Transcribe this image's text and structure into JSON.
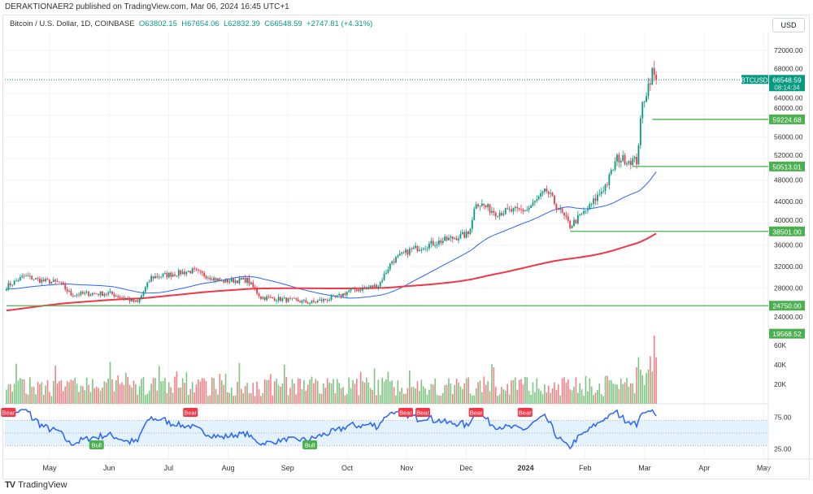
{
  "header": {
    "published": "DERAKTIONAER2 published on TradingView.com, Mar 06, 2024 16:45 UTC+1"
  },
  "legend": {
    "symbol": "Bitcoin / U.S. Dollar, 1D, COINBASE",
    "open": "O63802.15",
    "high": "H67654.06",
    "low": "L62832.39",
    "close": "C66548.59",
    "change": "+2747.81 (+4.31%)"
  },
  "currency_button": "USD",
  "footer": {
    "brand": "TradingView"
  },
  "colors": {
    "up": "#089981",
    "down": "#f23645",
    "ma_fast": "#2962ff",
    "ma_slow": "#f23645",
    "level": "#4caf50",
    "rsi": "#2962ff",
    "rsi_band": "#e3f2fd"
  },
  "chart_data": {
    "type": "candlestick",
    "symbol_label": "BTCUSD",
    "last_price": "66548.59",
    "countdown": "08:14:34",
    "price_axis": {
      "ticks": [
        "72000.00",
        "68000.00",
        "64000.00",
        "60000.00",
        "56000.00",
        "52000.00",
        "48000.00",
        "44000.00",
        "40000.00",
        "36000.00",
        "32000.00",
        "28000.00",
        "24000.00"
      ],
      "range": [
        20000,
        74000
      ]
    },
    "time_axis": {
      "ticks": [
        "May",
        "Jun",
        "Jul",
        "Aug",
        "Sep",
        "Oct",
        "Nov",
        "Dec",
        "2024",
        "Feb",
        "Mar",
        "Apr",
        "May"
      ],
      "range": [
        "2023-04-09",
        "2024-05-05"
      ]
    },
    "close_anchors": [
      [
        "2023-04-09",
        28300
      ],
      [
        "2023-04-18",
        30200
      ],
      [
        "2023-04-28",
        29300
      ],
      [
        "2023-05-06",
        29000
      ],
      [
        "2023-05-12",
        26800
      ],
      [
        "2023-05-22",
        27000
      ],
      [
        "2023-06-01",
        27000
      ],
      [
        "2023-06-15",
        25300
      ],
      [
        "2023-06-22",
        30000
      ],
      [
        "2023-07-01",
        30500
      ],
      [
        "2023-07-13",
        31200
      ],
      [
        "2023-07-28",
        29300
      ],
      [
        "2023-08-10",
        29500
      ],
      [
        "2023-08-17",
        26300
      ],
      [
        "2023-09-01",
        25800
      ],
      [
        "2023-09-11",
        25300
      ],
      [
        "2023-09-25",
        26300
      ],
      [
        "2023-10-01",
        27500
      ],
      [
        "2023-10-16",
        28500
      ],
      [
        "2023-10-23",
        33000
      ],
      [
        "2023-11-01",
        35000
      ],
      [
        "2023-11-15",
        36500
      ],
      [
        "2023-12-01",
        38000
      ],
      [
        "2023-12-05",
        44000
      ],
      [
        "2023-12-15",
        42000
      ],
      [
        "2023-12-31",
        42500
      ],
      [
        "2024-01-10",
        46000
      ],
      [
        "2024-01-22",
        39500
      ],
      [
        "2024-02-01",
        43000
      ],
      [
        "2024-02-10",
        47500
      ],
      [
        "2024-02-15",
        52000
      ],
      [
        "2024-02-25",
        51500
      ],
      [
        "2024-02-28",
        62000
      ],
      [
        "2024-03-04",
        68000
      ],
      [
        "2024-03-06",
        66548.59
      ]
    ],
    "levels": [
      {
        "value": 59224.68,
        "label": "59224.68",
        "from": "2024-03-04"
      },
      {
        "value": 50513.01,
        "label": "50513.01",
        "from": "2024-02-23"
      },
      {
        "value": 38501.0,
        "label": "38501.00",
        "from": "2024-01-22"
      },
      {
        "value": 24750.0,
        "label": "24750.00",
        "from": "2023-04-09"
      },
      {
        "value": 19568.52,
        "label": "19568.52",
        "from": null
      }
    ],
    "moving_averages": [
      {
        "period": 50,
        "color": "#2962ff"
      },
      {
        "period": 200,
        "color": "#f23645"
      }
    ],
    "volume": {
      "ticks": [
        "60K",
        "40K",
        "20K"
      ],
      "range": [
        0,
        80000
      ]
    },
    "rsi": {
      "ticks": [
        "75.00",
        "25.00"
      ],
      "range": [
        0,
        100
      ],
      "band": [
        30,
        70
      ],
      "signals": [
        {
          "type": "Bear",
          "date": "2023-04-10"
        },
        {
          "type": "Bull",
          "date": "2023-05-25"
        },
        {
          "type": "Bear",
          "date": "2023-07-12"
        },
        {
          "type": "Bull",
          "date": "2023-09-11"
        },
        {
          "type": "Bear",
          "date": "2023-10-30"
        },
        {
          "type": "Bear",
          "date": "2023-11-04"
        },
        {
          "type": "Bear",
          "date": "2023-12-05"
        },
        {
          "type": "Bear",
          "date": "2023-12-30"
        }
      ]
    }
  }
}
